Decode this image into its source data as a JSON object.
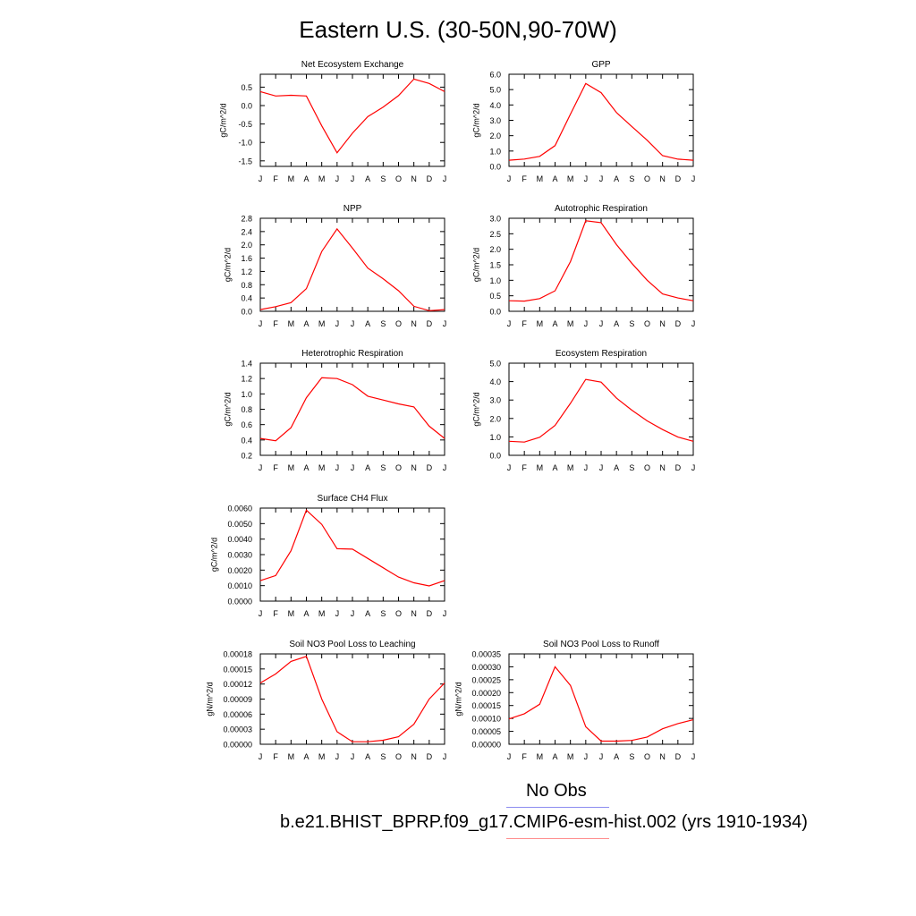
{
  "title": "Eastern U.S. (30-50N,90-70W)",
  "month_labels": [
    "J",
    "F",
    "M",
    "A",
    "M",
    "J",
    "J",
    "A",
    "S",
    "O",
    "N",
    "D",
    "J"
  ],
  "series_color": "#ff0000",
  "legend": [
    {
      "label": "No Obs",
      "color": "#8c8cf0"
    },
    {
      "label": "b.e21.BHIST_BPRP.f09_g17.CMIP6-esm-hist.002 (yrs 1910-1934)",
      "color": "#ff8c8c"
    }
  ],
  "chart_data": [
    {
      "type": "line",
      "title": "Net Ecosystem Exchange",
      "ylabel": "gC/m^2/d",
      "ylim": [
        -1.65,
        0.85
      ],
      "yticks": [
        0.5,
        0.0,
        -0.5,
        -1.0,
        -1.5
      ],
      "ytick_labels": [
        "0.5",
        "0.0",
        "-0.5",
        "-1.0",
        "-1.5"
      ],
      "x": [
        "J",
        "F",
        "M",
        "A",
        "M",
        "J",
        "J",
        "A",
        "S",
        "O",
        "N",
        "D",
        "J"
      ],
      "values": [
        0.38,
        0.26,
        0.28,
        0.26,
        -0.55,
        -1.28,
        -0.75,
        -0.3,
        -0.04,
        0.27,
        0.72,
        0.6,
        0.38
      ]
    },
    {
      "type": "line",
      "title": "GPP",
      "ylabel": "gC/m^2/d",
      "ylim": [
        0,
        6
      ],
      "yticks": [
        0,
        1,
        2,
        3,
        4,
        5,
        6
      ],
      "ytick_labels": [
        "0.0",
        "1.0",
        "2.0",
        "3.0",
        "4.0",
        "5.0",
        "6.0"
      ],
      "x": [
        "J",
        "F",
        "M",
        "A",
        "M",
        "J",
        "J",
        "A",
        "S",
        "O",
        "N",
        "D",
        "J"
      ],
      "values": [
        0.4,
        0.48,
        0.65,
        1.35,
        3.4,
        5.4,
        4.8,
        3.5,
        2.6,
        1.7,
        0.7,
        0.47,
        0.4
      ]
    },
    {
      "type": "line",
      "title": "NPP",
      "ylabel": "gC/m^2/d",
      "ylim": [
        0,
        2.8
      ],
      "yticks": [
        0,
        0.4,
        0.8,
        1.2,
        1.6,
        2.0,
        2.4,
        2.8
      ],
      "ytick_labels": [
        "0.0",
        "0.4",
        "0.8",
        "1.2",
        "1.6",
        "2.0",
        "2.4",
        "2.8"
      ],
      "x": [
        "J",
        "F",
        "M",
        "A",
        "M",
        "J",
        "J",
        "A",
        "S",
        "O",
        "N",
        "D",
        "J"
      ],
      "values": [
        0.05,
        0.14,
        0.26,
        0.68,
        1.8,
        2.48,
        1.9,
        1.3,
        0.98,
        0.62,
        0.15,
        0.02,
        0.05
      ]
    },
    {
      "type": "line",
      "title": "Autotrophic Respiration",
      "ylabel": "gC/m^2/d",
      "ylim": [
        0,
        3
      ],
      "yticks": [
        0,
        0.5,
        1.0,
        1.5,
        2.0,
        2.5,
        3.0
      ],
      "ytick_labels": [
        "0.0",
        "0.5",
        "1.0",
        "1.5",
        "2.0",
        "2.5",
        "3.0"
      ],
      "x": [
        "J",
        "F",
        "M",
        "A",
        "M",
        "J",
        "J",
        "A",
        "S",
        "O",
        "N",
        "D",
        "J"
      ],
      "values": [
        0.34,
        0.33,
        0.41,
        0.66,
        1.6,
        2.92,
        2.86,
        2.15,
        1.55,
        1.0,
        0.56,
        0.43,
        0.34
      ]
    },
    {
      "type": "line",
      "title": "Heterotrophic Respiration",
      "ylabel": "gC/m^2/d",
      "ylim": [
        0.2,
        1.4
      ],
      "yticks": [
        0.2,
        0.4,
        0.6,
        0.8,
        1.0,
        1.2,
        1.4
      ],
      "ytick_labels": [
        "0.2",
        "0.4",
        "0.6",
        "0.8",
        "1.0",
        "1.2",
        "1.4"
      ],
      "x": [
        "J",
        "F",
        "M",
        "A",
        "M",
        "J",
        "J",
        "A",
        "S",
        "O",
        "N",
        "D",
        "J"
      ],
      "values": [
        0.42,
        0.39,
        0.56,
        0.95,
        1.21,
        1.2,
        1.12,
        0.97,
        0.92,
        0.87,
        0.83,
        0.58,
        0.42
      ]
    },
    {
      "type": "line",
      "title": "Ecosystem Respiration",
      "ylabel": "gC/m^2/d",
      "ylim": [
        0,
        5
      ],
      "yticks": [
        0,
        1,
        2,
        3,
        4,
        5
      ],
      "ytick_labels": [
        "0.0",
        "1.0",
        "2.0",
        "3.0",
        "4.0",
        "5.0"
      ],
      "x": [
        "J",
        "F",
        "M",
        "A",
        "M",
        "J",
        "J",
        "A",
        "S",
        "O",
        "N",
        "D",
        "J"
      ],
      "values": [
        0.76,
        0.72,
        0.98,
        1.62,
        2.82,
        4.12,
        3.97,
        3.1,
        2.45,
        1.87,
        1.4,
        0.99,
        0.76
      ]
    },
    {
      "type": "line",
      "title": "Surface CH4 Flux",
      "ylabel": "gC/m^2/d",
      "ylim": [
        0,
        0.006
      ],
      "yticks": [
        0,
        0.001,
        0.002,
        0.003,
        0.004,
        0.005,
        0.006
      ],
      "ytick_labels": [
        "0.0000",
        "0.0010",
        "0.0020",
        "0.0030",
        "0.0040",
        "0.0050",
        "0.0060"
      ],
      "x": [
        "J",
        "F",
        "M",
        "A",
        "M",
        "J",
        "J",
        "A",
        "S",
        "O",
        "N",
        "D",
        "J"
      ],
      "values": [
        0.00132,
        0.00165,
        0.00325,
        0.00587,
        0.00495,
        0.00338,
        0.00335,
        0.00275,
        0.00215,
        0.00155,
        0.00118,
        0.00098,
        0.00132
      ]
    },
    {
      "type": "line",
      "title": "Soil NO3 Pool Loss to Leaching",
      "ylabel": "gN/m^2/d",
      "ylim": [
        0,
        0.00018
      ],
      "yticks": [
        0,
        3e-05,
        6e-05,
        9e-05,
        0.00012,
        0.00015,
        0.00018
      ],
      "ytick_labels": [
        "0.00000",
        "0.00003",
        "0.00006",
        "0.00009",
        "0.00012",
        "0.00015",
        "0.00018"
      ],
      "x": [
        "J",
        "F",
        "M",
        "A",
        "M",
        "J",
        "J",
        "A",
        "S",
        "O",
        "N",
        "D",
        "J"
      ],
      "values": [
        0.000122,
        0.00014,
        0.000165,
        0.000175,
        9e-05,
        2.5e-05,
        5e-06,
        5e-06,
        8e-06,
        1.5e-05,
        4e-05,
        9e-05,
        0.000122
      ]
    },
    {
      "type": "line",
      "title": "Soil NO3 Pool Loss to Runoff",
      "ylabel": "gN/m^2/d",
      "ylim": [
        0,
        0.00035
      ],
      "yticks": [
        0,
        5e-05,
        0.0001,
        0.00015,
        0.0002,
        0.00025,
        0.0003,
        0.00035
      ],
      "ytick_labels": [
        "0.00000",
        "0.00005",
        "0.00010",
        "0.00015",
        "0.00020",
        "0.00025",
        "0.00030",
        "0.00035"
      ],
      "x": [
        "J",
        "F",
        "M",
        "A",
        "M",
        "J",
        "J",
        "A",
        "S",
        "O",
        "N",
        "D",
        "J"
      ],
      "values": [
        9.8e-05,
        0.000118,
        0.000155,
        0.0003,
        0.000228,
        6.8e-05,
        1.2e-05,
        1.2e-05,
        1.5e-05,
        2.8e-05,
        6e-05,
        8e-05,
        9.5e-05
      ]
    }
  ]
}
